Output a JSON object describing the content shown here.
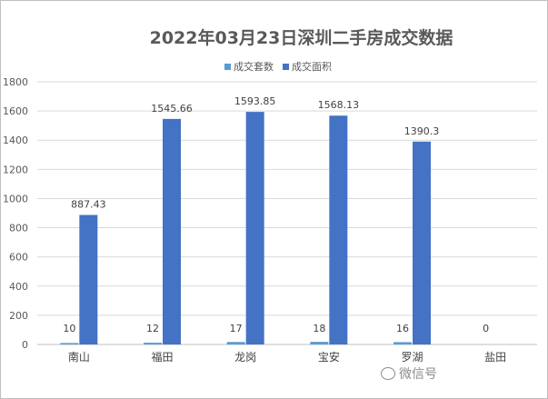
{
  "chart_data": {
    "type": "bar",
    "title": "2022年03月23日深圳二手房成交数据",
    "categories": [
      "南山",
      "福田",
      "龙岗",
      "宝安",
      "罗湖",
      "盐田"
    ],
    "series": [
      {
        "name": "成交套数",
        "values": [
          10,
          12,
          17,
          18,
          16,
          0
        ],
        "color": "#5b9bd5"
      },
      {
        "name": "成交面积",
        "values": [
          887.43,
          1545.66,
          1593.85,
          1568.13,
          1390.3,
          null
        ],
        "color": "#4472c4"
      }
    ],
    "data_labels": [
      [
        "10",
        "12",
        "17",
        "18",
        "16",
        "0"
      ],
      [
        "887.43",
        "1545.66",
        "1593.85",
        "1568.13",
        "1390.3",
        ""
      ]
    ],
    "yticks": [
      0,
      200,
      400,
      600,
      800,
      1000,
      1200,
      1400,
      1600,
      1800
    ],
    "ylim": [
      0,
      1800
    ],
    "grid": true,
    "legend_position": "top"
  },
  "watermark": "微信号"
}
